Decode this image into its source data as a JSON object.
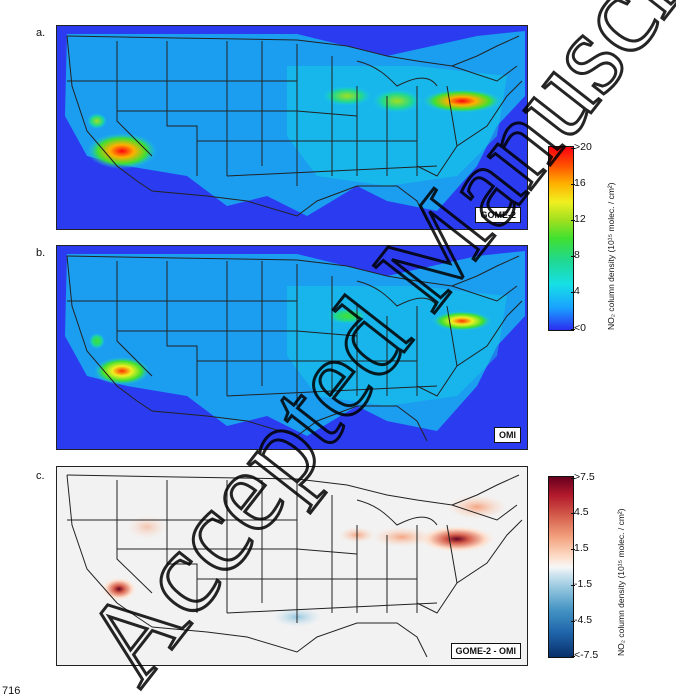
{
  "panels": [
    {
      "label": "a.",
      "badge": "GOME-2"
    },
    {
      "label": "b.",
      "badge": "OMI"
    },
    {
      "label": "c.",
      "badge": "GOME-2 - OMI"
    }
  ],
  "colorbar_top": {
    "ticks": [
      ">20",
      "16",
      "12",
      "8",
      "4",
      "<0"
    ],
    "title": "NO₂ column density (10¹⁵ molec. / cm²)"
  },
  "colorbar_bottom": {
    "ticks": [
      ">7.5",
      "4.5",
      "1.5",
      "-1.5",
      "-4.5",
      "<-7.5"
    ],
    "title": "NO₂ column density (10¹⁵ molec. / cm²)"
  },
  "line_number": "716",
  "watermark": "Accepted Manuscript"
}
